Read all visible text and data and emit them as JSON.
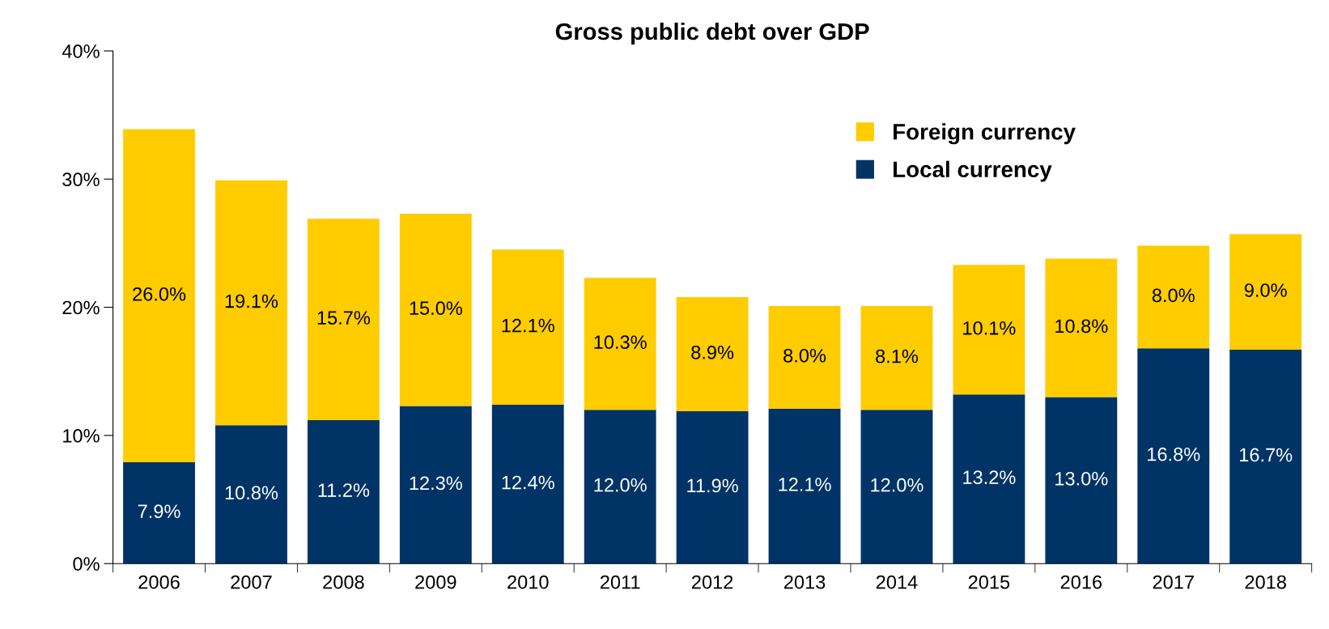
{
  "chart_data": {
    "type": "bar",
    "title": "Gross public debt over GDP",
    "stacked": true,
    "categories": [
      "2006",
      "2007",
      "2008",
      "2009",
      "2010",
      "2011",
      "2012",
      "2013",
      "2014",
      "2015",
      "2016",
      "2017",
      "2018"
    ],
    "series": [
      {
        "name": "Local currency",
        "color": "#003366",
        "values": [
          7.9,
          10.8,
          11.2,
          12.3,
          12.4,
          12.0,
          11.9,
          12.1,
          12.0,
          13.2,
          13.0,
          16.8,
          16.7
        ],
        "value_labels": [
          "7.9%",
          "10.8%",
          "11.2%",
          "12.3%",
          "12.4%",
          "12.0%",
          "11.9%",
          "12.1%",
          "12.0%",
          "13.2%",
          "13.0%",
          "16.8%",
          "16.7%"
        ]
      },
      {
        "name": "Foreign currency",
        "color": "#ffcc00",
        "values": [
          26.0,
          19.1,
          15.7,
          15.0,
          12.1,
          10.3,
          8.9,
          8.0,
          8.1,
          10.1,
          10.8,
          8.0,
          9.0
        ],
        "value_labels": [
          "26.0%",
          "19.1%",
          "15.7%",
          "15.0%",
          "12.1%",
          "10.3%",
          "8.9%",
          "8.0%",
          "8.1%",
          "10.1%",
          "10.8%",
          "8.0%",
          "9.0%"
        ]
      }
    ],
    "ylim": [
      0,
      40
    ],
    "yticks": [
      {
        "value": 0,
        "label": "0%"
      },
      {
        "value": 10,
        "label": "10%"
      },
      {
        "value": 20,
        "label": "20%"
      },
      {
        "value": 30,
        "label": "30%"
      },
      {
        "value": 40,
        "label": "40%"
      }
    ],
    "grid": false,
    "legend": "top right"
  }
}
